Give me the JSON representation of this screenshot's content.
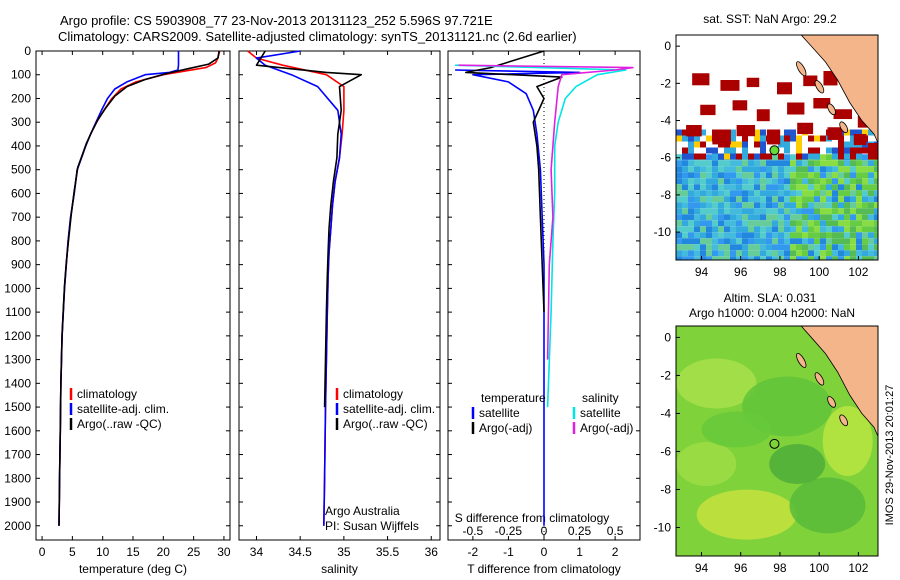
{
  "header": {
    "title_line1": "Argo profile: CS 5903908_77 23-Nov-2013 20131123_252 5.596S 97.721E",
    "title_line2": "Climatology: CARS2009. Satellite-adjusted climatology: synTS_20131121.nc (2.6d earlier)"
  },
  "colors": {
    "climatology": "#ff0000",
    "satellite": "#0000ff",
    "argo": "#000000",
    "salinity_satellite": "#00e5e5",
    "salinity_argo": "#e020e0",
    "land": "#f5b58a",
    "sst_hot": "#aa0000",
    "sla_field": "#7fd23a"
  },
  "chart_data": [
    {
      "type": "line",
      "panel": "temperature",
      "xlabel": "temperature (deg C)",
      "xlim": [
        -1,
        31
      ],
      "xticks": [
        0,
        5,
        10,
        15,
        20,
        25,
        30
      ],
      "ylim": [
        2060,
        0
      ],
      "yticks": [
        0,
        100,
        200,
        300,
        400,
        500,
        600,
        700,
        800,
        900,
        1000,
        1100,
        1200,
        1300,
        1400,
        1500,
        1600,
        1700,
        1800,
        1900,
        2000
      ],
      "legend": [
        "climatology",
        "satellite-adj. clim.",
        "Argo(..raw -QC)"
      ],
      "series": [
        {
          "name": "climatology",
          "color": "#ff0000",
          "x": [
            29.3,
            29.0,
            28.6,
            27.0,
            20.0,
            15.5,
            13.0,
            11.5,
            10.2,
            9.0,
            8.0,
            7.2,
            6.5,
            5.8,
            5.3,
            4.7,
            4.3,
            4.0,
            3.7,
            3.5,
            3.3,
            3.1,
            3.0,
            2.9,
            2.8
          ],
          "y": [
            0,
            30,
            50,
            70,
            100,
            130,
            160,
            200,
            250,
            300,
            350,
            400,
            450,
            500,
            600,
            700,
            800,
            900,
            1000,
            1100,
            1200,
            1400,
            1600,
            1800,
            2000
          ]
        },
        {
          "name": "satellite",
          "color": "#0000ff",
          "x": [
            22.5,
            22.5,
            22.4,
            21.0,
            17.0,
            14.0,
            12.0,
            10.8,
            9.8,
            8.9,
            8.0,
            7.2,
            6.5,
            5.8,
            5.3,
            4.7,
            4.3,
            4.0,
            3.7,
            3.5,
            3.3,
            3.1,
            3.0,
            2.9,
            2.8
          ],
          "y": [
            0,
            60,
            80,
            90,
            100,
            130,
            160,
            200,
            250,
            300,
            350,
            400,
            450,
            500,
            600,
            700,
            800,
            900,
            1000,
            1100,
            1200,
            1400,
            1600,
            1800,
            2000
          ]
        },
        {
          "name": "Argo",
          "color": "#000000",
          "x": [
            29.2,
            29.0,
            27.5,
            24.0,
            20.5,
            17.0,
            14.0,
            12.0,
            10.5,
            9.2,
            8.2,
            7.3,
            6.6,
            5.9,
            5.3,
            4.8,
            4.4,
            4.0,
            3.7,
            3.5,
            3.3,
            3.1,
            3.0,
            2.9,
            2.8
          ],
          "y": [
            0,
            30,
            55,
            75,
            95,
            120,
            150,
            190,
            240,
            290,
            340,
            390,
            440,
            490,
            590,
            690,
            790,
            890,
            990,
            1090,
            1190,
            1390,
            1590,
            1790,
            2000
          ]
        }
      ]
    },
    {
      "type": "line",
      "panel": "salinity",
      "xlabel": "salinity",
      "xlim": [
        33.8,
        36.1
      ],
      "xticks": [
        34,
        34.5,
        35,
        35.5,
        36
      ],
      "ylim": [
        2060,
        0
      ],
      "legend": [
        "climatology",
        "satellite-adj. clim.",
        "Argo(..raw -QC)"
      ],
      "annotation": [
        "Argo Australia",
        "PI: Susan Wijffels"
      ],
      "series": [
        {
          "name": "climatology",
          "color": "#ff0000",
          "x": [
            33.9,
            34.0,
            34.3,
            34.8,
            35.0,
            35.0,
            34.98,
            34.95,
            34.9,
            34.87,
            34.85,
            34.83,
            34.82,
            34.81,
            34.8,
            34.79,
            34.78,
            34.77
          ],
          "y": [
            0,
            30,
            60,
            100,
            150,
            250,
            350,
            450,
            550,
            650,
            750,
            850,
            950,
            1100,
            1300,
            1500,
            1800,
            2000
          ]
        },
        {
          "name": "satellite",
          "color": "#0000ff",
          "x": [
            34.5,
            34.0,
            34.1,
            34.4,
            34.7,
            34.93,
            34.97,
            34.95,
            34.9,
            34.87,
            34.85,
            34.83,
            34.82,
            34.81,
            34.8,
            34.79,
            34.78,
            34.77
          ],
          "y": [
            0,
            30,
            60,
            100,
            150,
            250,
            350,
            450,
            550,
            650,
            750,
            850,
            950,
            1100,
            1300,
            1500,
            1800,
            2000
          ]
        },
        {
          "name": "Argo",
          "color": "#000000",
          "x": [
            34.1,
            34.0,
            34.8,
            35.2,
            34.95,
            34.97,
            34.93,
            34.92,
            34.88,
            34.85,
            34.83,
            34.82,
            34.81,
            34.8,
            34.79,
            34.78
          ],
          "y": [
            0,
            60,
            90,
            100,
            150,
            250,
            350,
            450,
            550,
            650,
            750,
            850,
            950,
            1100,
            1300,
            1500
          ]
        }
      ]
    },
    {
      "type": "line",
      "panel": "differences",
      "xlabel": "T difference from climatology",
      "xlabel_top": "S difference from climatology",
      "xlim": [
        -2.7,
        2.7
      ],
      "xticks": [
        -2,
        -1,
        0,
        1,
        2
      ],
      "xticks_top": [
        "-0.5",
        "-0.25",
        "0",
        "0.25",
        "0.5"
      ],
      "ylim": [
        2060,
        0
      ],
      "legend_groups": [
        {
          "heading": "temperature",
          "items": [
            "satellite",
            "Argo(-adj)"
          ]
        },
        {
          "heading": "salinity",
          "items": [
            "satellite",
            "Argo(-adj)"
          ]
        }
      ],
      "series": [
        {
          "name": "satellite",
          "color": "#0000ff",
          "x": [
            -2.5,
            1.0,
            -2.0,
            -1.0,
            -0.5,
            -0.3,
            -0.2,
            -0.1,
            -0.05,
            0.0,
            0.0,
            0.0,
            0.0
          ],
          "y": [
            80,
            90,
            100,
            130,
            180,
            250,
            350,
            500,
            700,
            900,
            1200,
            1600,
            2000
          ]
        },
        {
          "name": "Argo(-adj)",
          "color": "#000000",
          "x": [
            0.0,
            -1.5,
            -2.2,
            0.5,
            -0.2,
            0.0,
            -0.3,
            -0.2,
            -0.15,
            -0.1,
            -0.05,
            0.0
          ],
          "y": [
            0,
            70,
            90,
            110,
            150,
            200,
            300,
            400,
            500,
            700,
            900,
            1100
          ]
        },
        {
          "name": "salinity satellite",
          "color": "#00e5e5",
          "x": [
            -2.5,
            2.3,
            1.5,
            0.9,
            0.6,
            0.4,
            0.3,
            0.3,
            0.25,
            0.2,
            0.1
          ],
          "y": [
            60,
            80,
            100,
            150,
            200,
            300,
            400,
            600,
            800,
            1100,
            1500
          ]
        },
        {
          "name": "salinity Argo(-adj)",
          "color": "#e020e0",
          "x": [
            -2.4,
            2.5,
            2.0,
            0.5,
            0.4,
            0.3,
            0.2,
            0.25,
            0.15,
            0.1
          ],
          "y": [
            60,
            70,
            80,
            100,
            150,
            300,
            500,
            700,
            900,
            1300
          ]
        }
      ]
    },
    {
      "type": "heatmap",
      "panel": "sst_map",
      "title": "sat. SST: NaN Argo: 29.2",
      "xticks": [
        94,
        96,
        98,
        100,
        102
      ],
      "yticks": [
        0,
        -2,
        -4,
        -6,
        -8,
        -10
      ],
      "xlim": [
        92.7,
        103
      ],
      "ylim": [
        -11.5,
        0.6
      ],
      "argo_marker": {
        "lon": 97.72,
        "lat": -5.6
      }
    },
    {
      "type": "heatmap",
      "panel": "sla_map",
      "title_line1": "Altim. SLA: 0.031",
      "title_line2": "Argo h1000: 0.004 h2000: NaN",
      "xticks": [
        94,
        96,
        98,
        100,
        102
      ],
      "yticks": [
        0,
        -2,
        -4,
        -6,
        -8,
        -10
      ],
      "xlim": [
        92.7,
        103
      ],
      "ylim": [
        -11.5,
        0.6
      ],
      "argo_marker": {
        "lon": 97.72,
        "lat": -5.6
      }
    }
  ],
  "footer": {
    "imos_label": "IMOS 29-Nov-2013 20:01:27"
  }
}
